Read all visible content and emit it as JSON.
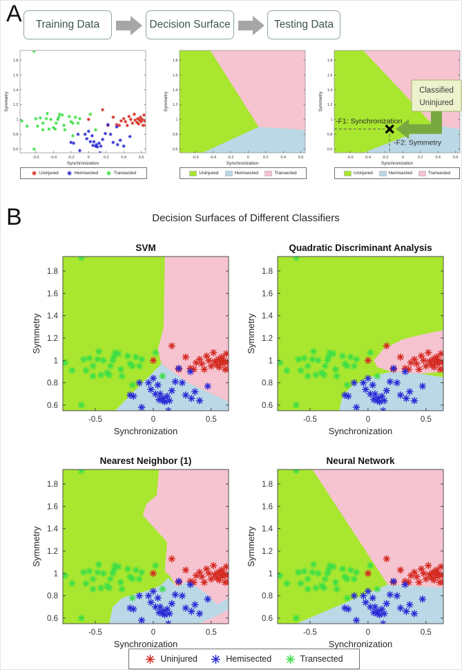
{
  "panel_a": {
    "label": "A",
    "flow_boxes": [
      "Training Data",
      "Decision Surface",
      "Testing Data"
    ],
    "annotations": {
      "classified_line1": "Classified",
      "classified_line2": "Uninjured",
      "f1": "-F1: Synchronization",
      "f2": "-F2: Symmetry",
      "marker_point": [
        -0.15,
        0.87
      ]
    }
  },
  "panel_b": {
    "label": "B",
    "title": "Decision Surfaces of Different Classifiers",
    "subplot_titles": [
      "SVM",
      "Quadratic Discriminant Analysis",
      "Nearest Neighbor (1)",
      "Neural Network"
    ]
  },
  "chart_data": {
    "type": "scatter",
    "title": "Decision Surfaces of Different Classifiers",
    "xlabel": "Synchronization",
    "ylabel": "Symmetry",
    "xlim": [
      -0.78,
      0.65
    ],
    "ylim": [
      0.55,
      1.93
    ],
    "xticks_panel_a": [
      -0.6,
      -0.4,
      -0.2,
      0,
      0.2,
      0.4,
      0.6
    ],
    "xticks_panel_b": [
      -0.5,
      0,
      0.5
    ],
    "yticks": [
      0.6,
      0.8,
      1,
      1.2,
      1.4,
      1.6,
      1.8
    ],
    "grid": false,
    "legend_position": "bottom",
    "series": [
      {
        "name": "Uninjured",
        "color": "#d42a20",
        "points": [
          [
            0.0,
            1.0
          ],
          [
            0.16,
            1.13
          ],
          [
            0.22,
            0.92
          ],
          [
            0.28,
            1.03
          ],
          [
            0.32,
            0.93
          ],
          [
            0.35,
            0.92
          ],
          [
            0.37,
            0.98
          ],
          [
            0.4,
            1.01
          ],
          [
            0.42,
            0.97
          ],
          [
            0.44,
            0.92
          ],
          [
            0.46,
            1.04
          ],
          [
            0.48,
            1.0
          ],
          [
            0.5,
            0.95
          ],
          [
            0.52,
            1.07
          ],
          [
            0.53,
            0.99
          ],
          [
            0.55,
            0.96
          ],
          [
            0.56,
            1.01
          ],
          [
            0.57,
            0.94
          ],
          [
            0.58,
            0.99
          ],
          [
            0.59,
            1.03
          ],
          [
            0.6,
            0.97
          ],
          [
            0.61,
            1.0
          ],
          [
            0.62,
            0.92
          ],
          [
            0.63,
            1.06
          ],
          [
            0.64,
            0.98
          ],
          [
            0.65,
            0.92
          ]
        ]
      },
      {
        "name": "Hemisected",
        "color": "#2b2bd5",
        "points": [
          [
            -0.2,
            0.69
          ],
          [
            -0.17,
            0.68
          ],
          [
            -0.12,
            0.8
          ],
          [
            -0.1,
            0.58
          ],
          [
            -0.04,
            0.8
          ],
          [
            -0.02,
            0.74
          ],
          [
            0.0,
            0.84
          ],
          [
            0.02,
            0.7
          ],
          [
            0.04,
            0.78
          ],
          [
            0.05,
            0.65
          ],
          [
            0.06,
            0.7
          ],
          [
            0.08,
            0.64
          ],
          [
            0.09,
            0.66
          ],
          [
            0.1,
            0.63
          ],
          [
            0.12,
            0.68
          ],
          [
            0.13,
            0.55
          ],
          [
            0.14,
            0.64
          ],
          [
            0.16,
            0.73
          ],
          [
            0.19,
            0.81
          ],
          [
            0.22,
            0.93
          ],
          [
            0.25,
            0.8
          ],
          [
            0.28,
            0.69
          ],
          [
            0.32,
            0.9
          ],
          [
            0.33,
            0.66
          ],
          [
            0.36,
            0.72
          ],
          [
            0.4,
            0.64
          ],
          [
            0.47,
            0.77
          ]
        ]
      },
      {
        "name": "Transected",
        "color": "#3ddf46",
        "points": [
          [
            -0.62,
            1.92
          ],
          [
            -0.76,
            0.98
          ],
          [
            -0.7,
            0.91
          ],
          [
            -0.62,
            0.6
          ],
          [
            -0.6,
            1.01
          ],
          [
            -0.58,
            0.91
          ],
          [
            -0.55,
            1.02
          ],
          [
            -0.52,
            0.95
          ],
          [
            -0.52,
            0.86
          ],
          [
            -0.48,
            1.01
          ],
          [
            -0.47,
            1.08
          ],
          [
            -0.45,
            0.87
          ],
          [
            -0.43,
            1.0
          ],
          [
            -0.4,
            0.89
          ],
          [
            -0.38,
            0.87
          ],
          [
            -0.37,
            0.95
          ],
          [
            -0.35,
            1.0
          ],
          [
            -0.34,
            1.03
          ],
          [
            -0.33,
            1.07
          ],
          [
            -0.3,
            1.06
          ],
          [
            -0.28,
            0.92
          ],
          [
            -0.27,
            0.86
          ],
          [
            -0.22,
            1.04
          ],
          [
            -0.2,
            0.97
          ],
          [
            -0.18,
            0.95
          ],
          [
            -0.18,
            0.78
          ],
          [
            -0.15,
            1.03
          ],
          [
            -0.12,
            0.95
          ],
          [
            -0.1,
            1.01
          ],
          [
            0.02,
            1.07
          ],
          [
            0.08,
            0.86
          ]
        ]
      }
    ],
    "region_colors": {
      "uninjured": "#a8e62f",
      "hemisected": "#bad8e6",
      "transected": "#f6c3d0"
    },
    "surfaces": {
      "linear": {
        "transected": [
          [
            -0.43,
            1.93
          ],
          [
            0.65,
            1.93
          ],
          [
            0.65,
            0.86
          ],
          [
            0.12,
            0.9
          ]
        ],
        "hemisected": [
          [
            0.12,
            0.9
          ],
          [
            0.65,
            0.86
          ],
          [
            0.65,
            0.55
          ],
          [
            -0.52,
            0.55
          ]
        ]
      },
      "testing": {
        "transected": [
          [
            -0.45,
            1.93
          ],
          [
            0.65,
            1.93
          ],
          [
            0.65,
            0.87
          ],
          [
            0.35,
            0.92
          ]
        ],
        "hemisected": [
          [
            0.35,
            0.92
          ],
          [
            0.65,
            0.87
          ],
          [
            0.65,
            0.55
          ],
          [
            -0.45,
            0.55
          ]
        ]
      },
      "svm": {
        "transected": [
          [
            0.1,
            1.93
          ],
          [
            0.65,
            1.93
          ],
          [
            0.65,
            0.63
          ],
          [
            0.3,
            0.8
          ],
          [
            0.07,
            0.97
          ],
          [
            0.04,
            1.1
          ],
          [
            0.09,
            1.3
          ]
        ],
        "hemisected": [
          [
            0.07,
            0.97
          ],
          [
            0.3,
            0.8
          ],
          [
            0.65,
            0.63
          ],
          [
            0.65,
            0.55
          ],
          [
            -0.33,
            0.55
          ]
        ]
      },
      "qda": {
        "transected": [
          [
            0.05,
            1.0
          ],
          [
            0.13,
            1.1
          ],
          [
            0.3,
            1.19
          ],
          [
            0.5,
            1.24
          ],
          [
            0.65,
            1.27
          ],
          [
            0.65,
            0.9
          ],
          [
            0.45,
            0.88
          ],
          [
            0.2,
            0.9
          ],
          [
            0.08,
            0.94
          ]
        ],
        "hemisected": [
          [
            -0.25,
            0.55
          ],
          [
            -0.22,
            0.68
          ],
          [
            -0.14,
            0.77
          ],
          [
            -0.03,
            0.83
          ],
          [
            0.08,
            0.87
          ],
          [
            0.2,
            0.9
          ],
          [
            0.45,
            0.88
          ],
          [
            0.65,
            0.85
          ],
          [
            0.65,
            0.55
          ]
        ]
      },
      "nearest_neighbor": {
        "transected": [
          [
            0.05,
            1.93
          ],
          [
            0.65,
            1.93
          ],
          [
            0.65,
            0.55
          ],
          [
            0.33,
            0.55
          ],
          [
            0.27,
            0.68
          ],
          [
            0.22,
            0.83
          ],
          [
            0.15,
            0.97
          ],
          [
            0.1,
            1.02
          ],
          [
            0.12,
            1.28
          ],
          [
            -0.09,
            1.52
          ],
          [
            -0.06,
            1.62
          ],
          [
            0.03,
            1.7
          ]
        ],
        "hemisected": [
          [
            -0.38,
            0.55
          ],
          [
            -0.35,
            0.7
          ],
          [
            -0.27,
            0.78
          ],
          [
            -0.14,
            0.82
          ],
          [
            0.0,
            0.86
          ],
          [
            0.07,
            0.9
          ],
          [
            0.13,
            0.96
          ],
          [
            0.2,
            0.88
          ],
          [
            0.3,
            0.93
          ],
          [
            0.4,
            0.86
          ],
          [
            0.48,
            0.8
          ],
          [
            0.55,
            0.72
          ],
          [
            0.65,
            0.78
          ],
          [
            0.65,
            0.68
          ],
          [
            0.55,
            0.62
          ],
          [
            0.45,
            0.58
          ],
          [
            0.4,
            0.55
          ]
        ]
      },
      "neural_network": {
        "transected": [
          [
            -0.48,
            1.93
          ],
          [
            0.65,
            1.93
          ],
          [
            0.65,
            0.87
          ],
          [
            0.17,
            0.9
          ]
        ],
        "hemisected": [
          [
            0.17,
            0.9
          ],
          [
            0.65,
            0.87
          ],
          [
            0.65,
            0.55
          ],
          [
            -0.62,
            0.55
          ]
        ]
      }
    }
  }
}
